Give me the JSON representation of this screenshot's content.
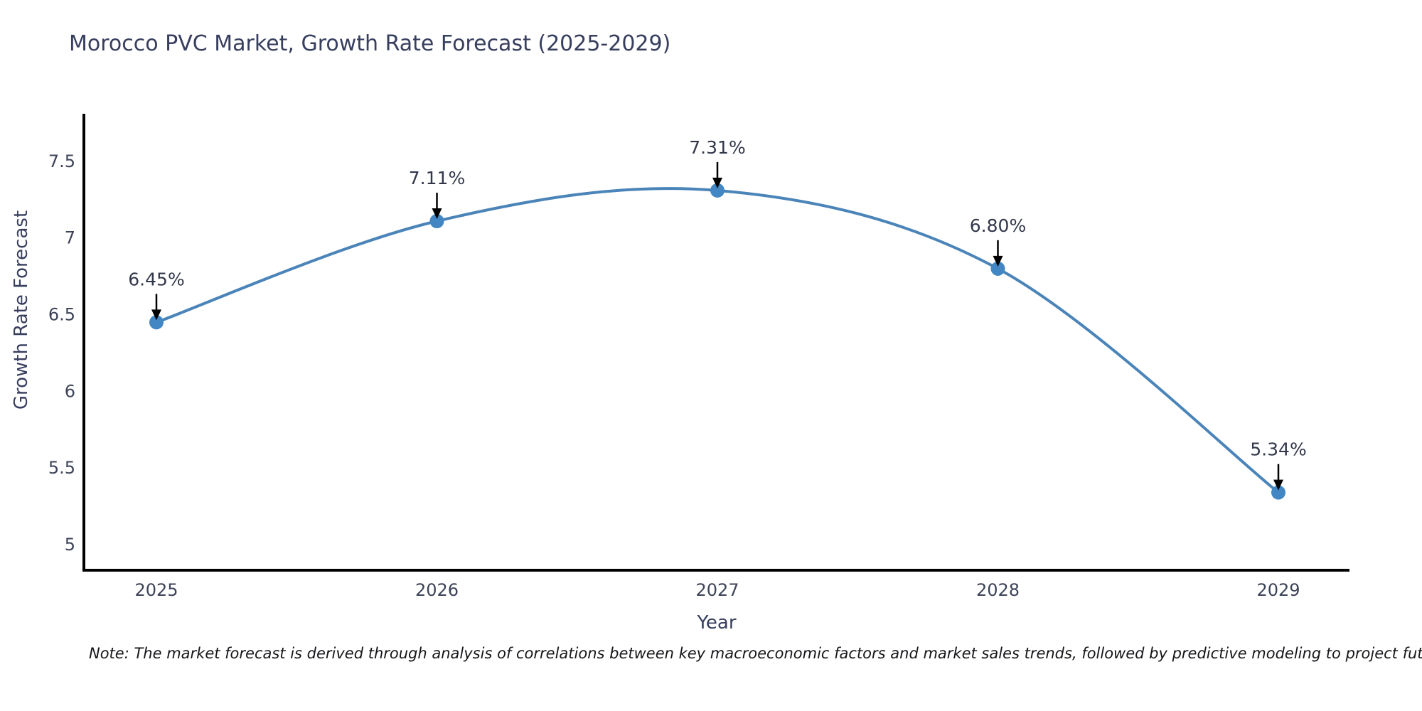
{
  "chart_data": {
    "type": "line",
    "title": "Morocco PVC Market, Growth Rate Forecast (2025-2029)",
    "xlabel": "Year",
    "ylabel": "Growth Rate Forecast",
    "categories": [
      "2025",
      "2026",
      "2027",
      "2028",
      "2029"
    ],
    "series": [
      {
        "name": "Growth Rate Forecast",
        "values": [
          6.45,
          7.11,
          7.31,
          6.8,
          5.34
        ]
      }
    ],
    "point_labels": [
      "6.45%",
      "7.11%",
      "7.31%",
      "6.80%",
      "5.34%"
    ],
    "y_ticks": [
      "7.5",
      "7",
      "6.5",
      "6",
      "5.5",
      "5"
    ],
    "y_tick_values": [
      7.5,
      7.0,
      6.5,
      6.0,
      5.5,
      5.0
    ],
    "ylim": [
      4.83,
      7.81
    ],
    "grid": false,
    "legend": "none",
    "line_color": "#4a84b8",
    "marker_color": "#4287c3",
    "axis_color": "#000000",
    "annotation_arrow_color": "#000000",
    "title_color": "#373e5e",
    "tick_label_color": "#3d4358",
    "annotation_text_color": "#32374a",
    "note": "Note: The market forecast is derived through analysis of correlations between key macroeconomic factors and market sales trends, followed by predictive modeling to project future sales"
  }
}
